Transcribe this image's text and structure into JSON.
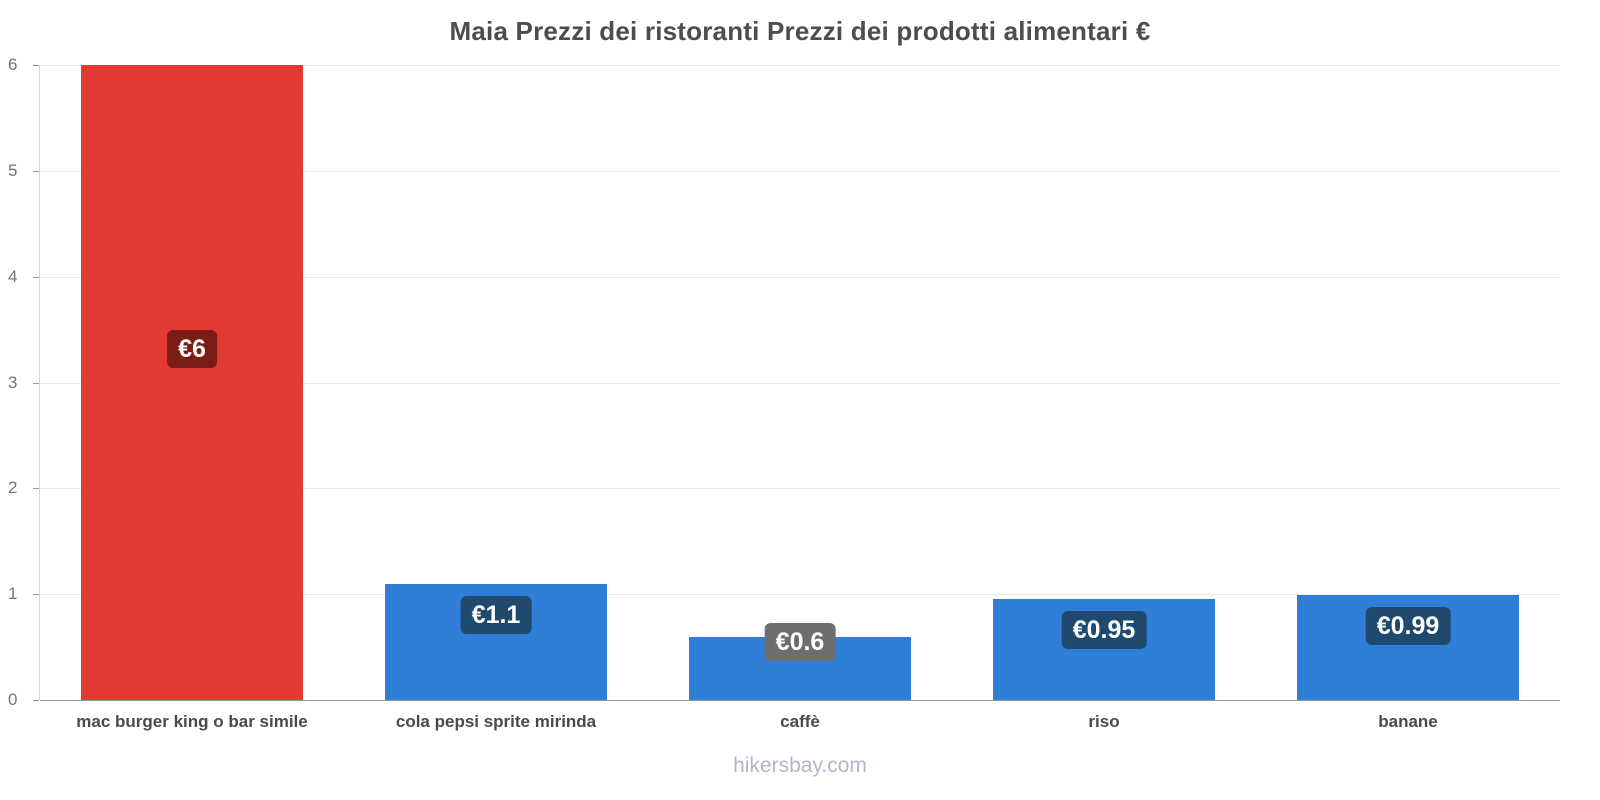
{
  "title": "Maia Prezzi dei ristoranti Prezzi dei prodotti alimentari €",
  "footer": {
    "watermark": "hikersbay.com"
  },
  "chart_data": {
    "type": "bar",
    "title": "Maia Prezzi dei ristoranti Prezzi dei prodotti alimentari €",
    "categories": [
      "mac burger king o bar simile",
      "cola pepsi sprite mirinda",
      "caffè",
      "riso",
      "banane"
    ],
    "values": [
      6,
      1.1,
      0.6,
      0.95,
      0.99
    ],
    "value_labels": [
      "€6",
      "€1.1",
      "€0.6",
      "€0.95",
      "€0.99"
    ],
    "bar_colors": [
      "#e23a32",
      "#2f7ed8",
      "#2f7ed8",
      "#2f7ed8",
      "#2f7ed8"
    ],
    "badge_colors": [
      "#7a1d15",
      "#1f4a6e",
      "#6e6e6e",
      "#1f4a6e",
      "#1f4a6e"
    ],
    "xlabel": "",
    "ylabel": "",
    "ylim": [
      0,
      6
    ],
    "yticks": [
      0,
      1,
      2,
      3,
      4,
      5,
      6
    ],
    "grid": true,
    "legend": "none",
    "currency": "€"
  }
}
